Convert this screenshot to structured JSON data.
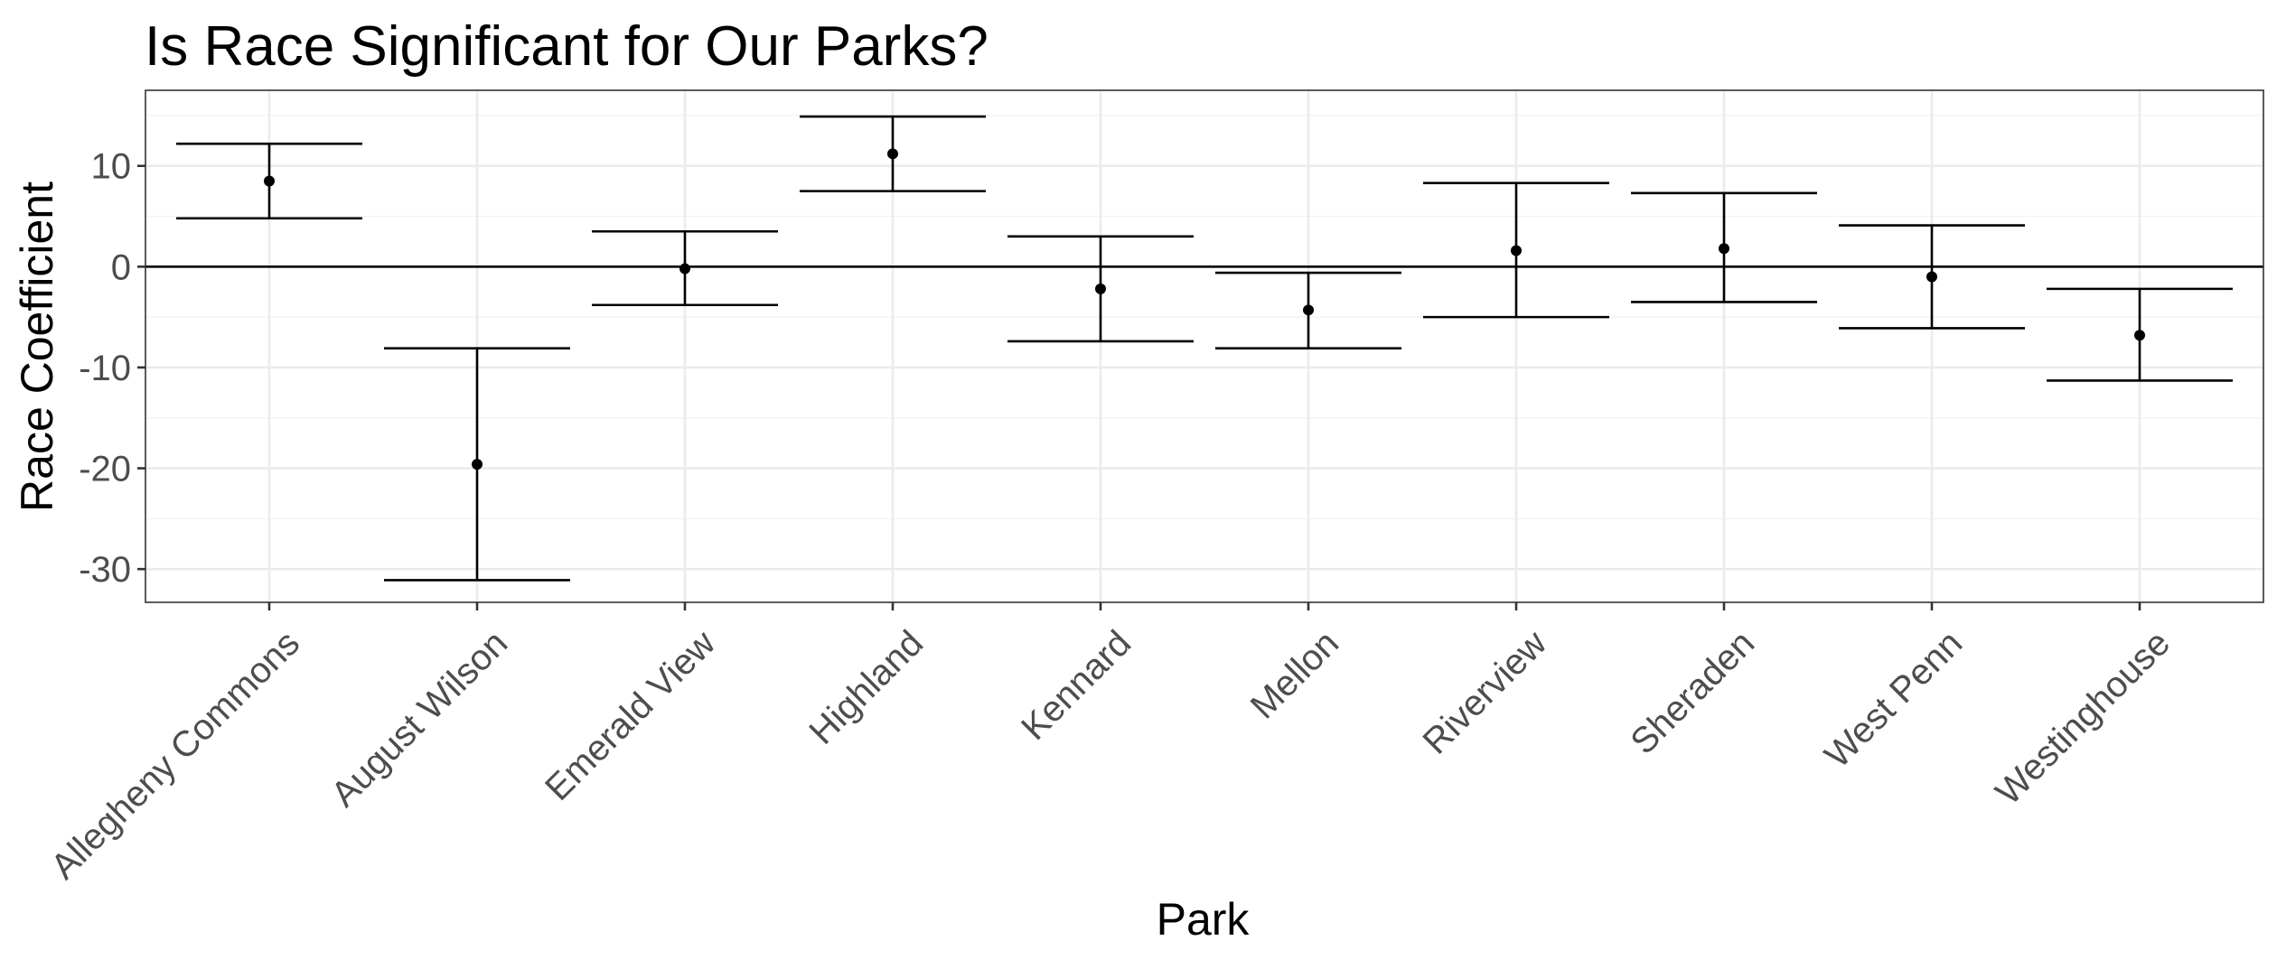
{
  "chart_data": {
    "type": "errorbar",
    "title": "Is Race Significant for Our Parks?",
    "xlabel": "Park",
    "ylabel": "Race Coefficient",
    "ylim": [
      -33.3,
      17.5
    ],
    "yticks": [
      10,
      0,
      -10,
      -20,
      -30
    ],
    "reference_line_y": 0,
    "grid": true,
    "categories": [
      "Allegheny Commons",
      "August Wilson",
      "Emerald View",
      "Highland",
      "Kennard",
      "Mellon",
      "Riverview",
      "Sheraden",
      "West Penn",
      "Westinghouse"
    ],
    "estimates": [
      8.5,
      -19.6,
      -0.2,
      11.2,
      -2.2,
      -4.3,
      1.6,
      1.8,
      -1.0,
      -6.8
    ],
    "lower": [
      4.8,
      -31.1,
      -3.8,
      7.5,
      -7.4,
      -8.1,
      -5.0,
      -3.5,
      -6.1,
      -11.3
    ],
    "upper": [
      12.2,
      -8.1,
      3.5,
      14.9,
      3.0,
      -0.6,
      8.3,
      7.3,
      4.1,
      -2.2
    ]
  }
}
